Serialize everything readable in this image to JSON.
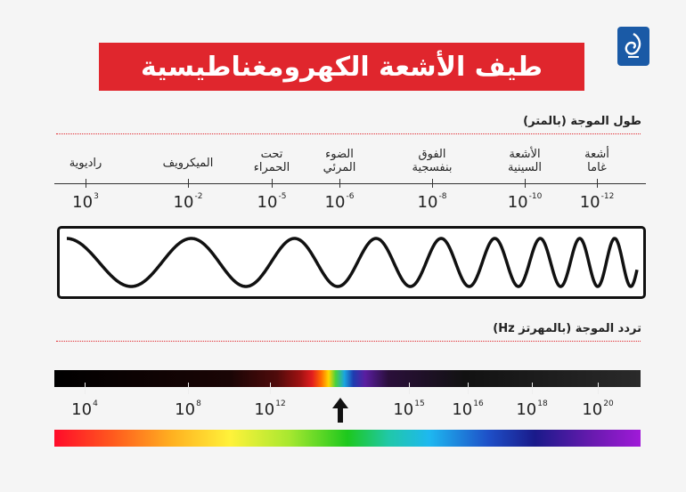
{
  "title": "طيف الأشعة الكهرومغناطيسية",
  "logo": "Al Jazeera logo",
  "wavelength_label": "طول الموجة (بالمتر)",
  "frequency_label": "تردد الموجة (بالمهرتز Hz)",
  "categories": [
    {
      "line1": "راديوية",
      "line2": ""
    },
    {
      "line1": "الميكرويف",
      "line2": ""
    },
    {
      "line1": "تحت",
      "line2": "الحمراء"
    },
    {
      "line1": "الضوء",
      "line2": "المرئي"
    },
    {
      "line1": "الفوق",
      "line2": "بنفسجية"
    },
    {
      "line1": "الأشعة",
      "line2": "السينية"
    },
    {
      "line1": "أشعة",
      "line2": "غاما"
    }
  ],
  "wavelength_ticks": [
    {
      "base": "10",
      "exp": "3"
    },
    {
      "base": "10",
      "exp": "-2"
    },
    {
      "base": "10",
      "exp": "-5"
    },
    {
      "base": "10",
      "exp": "-6"
    },
    {
      "base": "10",
      "exp": "-8"
    },
    {
      "base": "10",
      "exp": "-10"
    },
    {
      "base": "10",
      "exp": "-12"
    }
  ],
  "frequency_ticks": [
    {
      "base": "10",
      "exp": "4"
    },
    {
      "base": "10",
      "exp": "8"
    },
    {
      "base": "10",
      "exp": "12"
    },
    {
      "base": "10",
      "exp": "15"
    },
    {
      "base": "10",
      "exp": "16"
    },
    {
      "base": "10",
      "exp": "18"
    },
    {
      "base": "10",
      "exp": "20"
    }
  ],
  "visible_marker": "arrow-up-icon",
  "colors": {
    "accent": "#e0262d",
    "text": "#222222",
    "background": "#f5f5f5"
  }
}
